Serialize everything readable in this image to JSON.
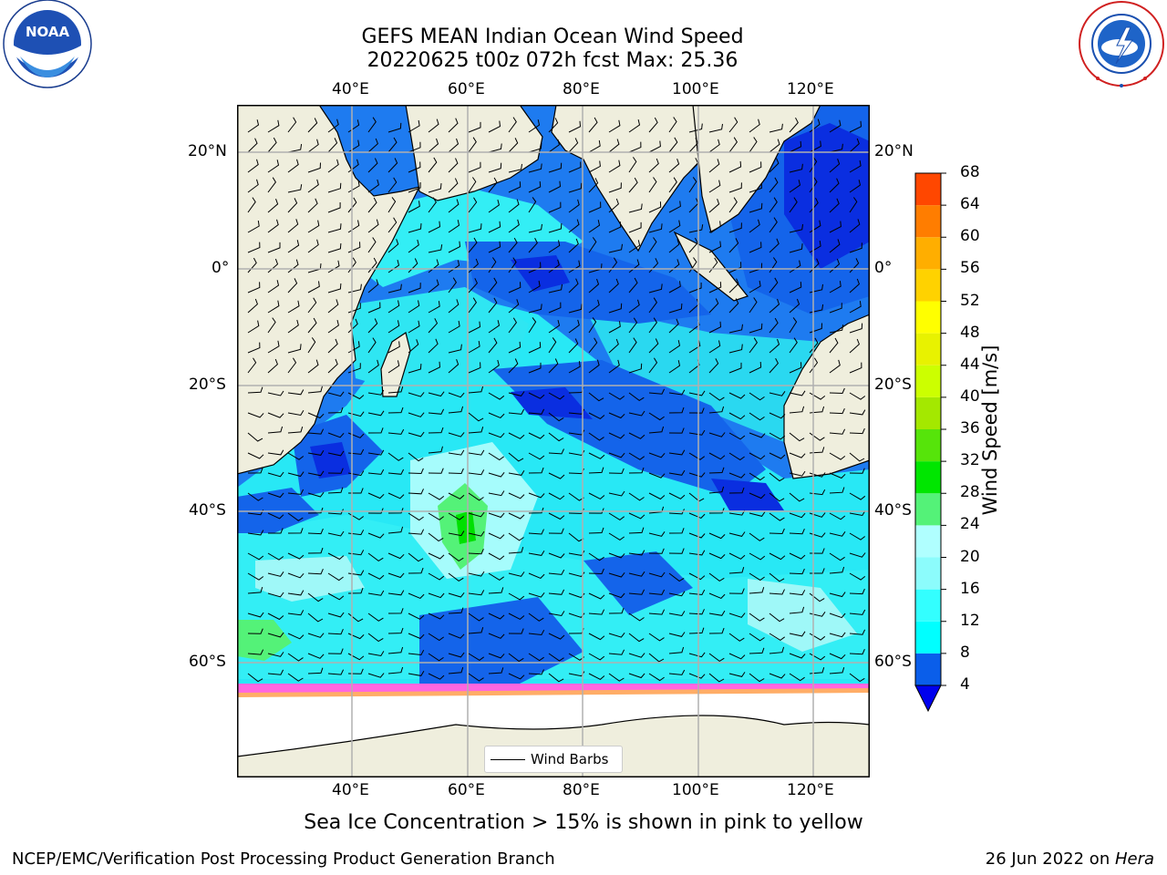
{
  "header": {
    "title_line1": "GEFS MEAN Indian Ocean Wind Speed",
    "title_line2": "20220625 t00z 072h fcst   Max: 25.36"
  },
  "logos": {
    "noaa_text": "NOAA",
    "noaa_ring_text": "NATIONAL OCEANIC AND ATMOSPHERIC ADMINISTRATION",
    "noaa_bottom_text": "U.S. DEPARTMENT OF COMMERCE",
    "nws_ring_text": "NATIONAL WEATHER SERVICE"
  },
  "map": {
    "lon_ticks": [
      "40°E",
      "60°E",
      "80°E",
      "100°E",
      "120°E"
    ],
    "lat_ticks": [
      "20°N",
      "0°",
      "20°S",
      "40°S",
      "60°S"
    ],
    "legend_label": "Wind Barbs",
    "colors": {
      "land": "#efeedd",
      "ice_free_south": "#ffffff",
      "grid": "#b0b0b0"
    }
  },
  "colorbar": {
    "label": "Wind Speed [m/s]",
    "ticks": [
      "4",
      "8",
      "12",
      "16",
      "20",
      "24",
      "28",
      "32",
      "36",
      "40",
      "44",
      "48",
      "52",
      "56",
      "60",
      "64",
      "68"
    ],
    "colors": [
      "#0a5eea",
      "#00ffff",
      "#33ffff",
      "#8cfcfc",
      "#b0ffff",
      "#54f278",
      "#00e600",
      "#56e40a",
      "#a4e800",
      "#ccff00",
      "#e8f200",
      "#ffff00",
      "#ffd200",
      "#ffae00",
      "#ff7d00",
      "#ff4700",
      "#ff2000",
      "#ff0000"
    ],
    "under_color": "#0000ee"
  },
  "caption": "Sea Ice Concentration > 15% is shown in pink to yellow",
  "footer": {
    "left": "NCEP/EMC/Verification Post Processing Product Generation Branch",
    "right_prefix": "26 Jun 2022 on ",
    "right_host": "Hera"
  }
}
